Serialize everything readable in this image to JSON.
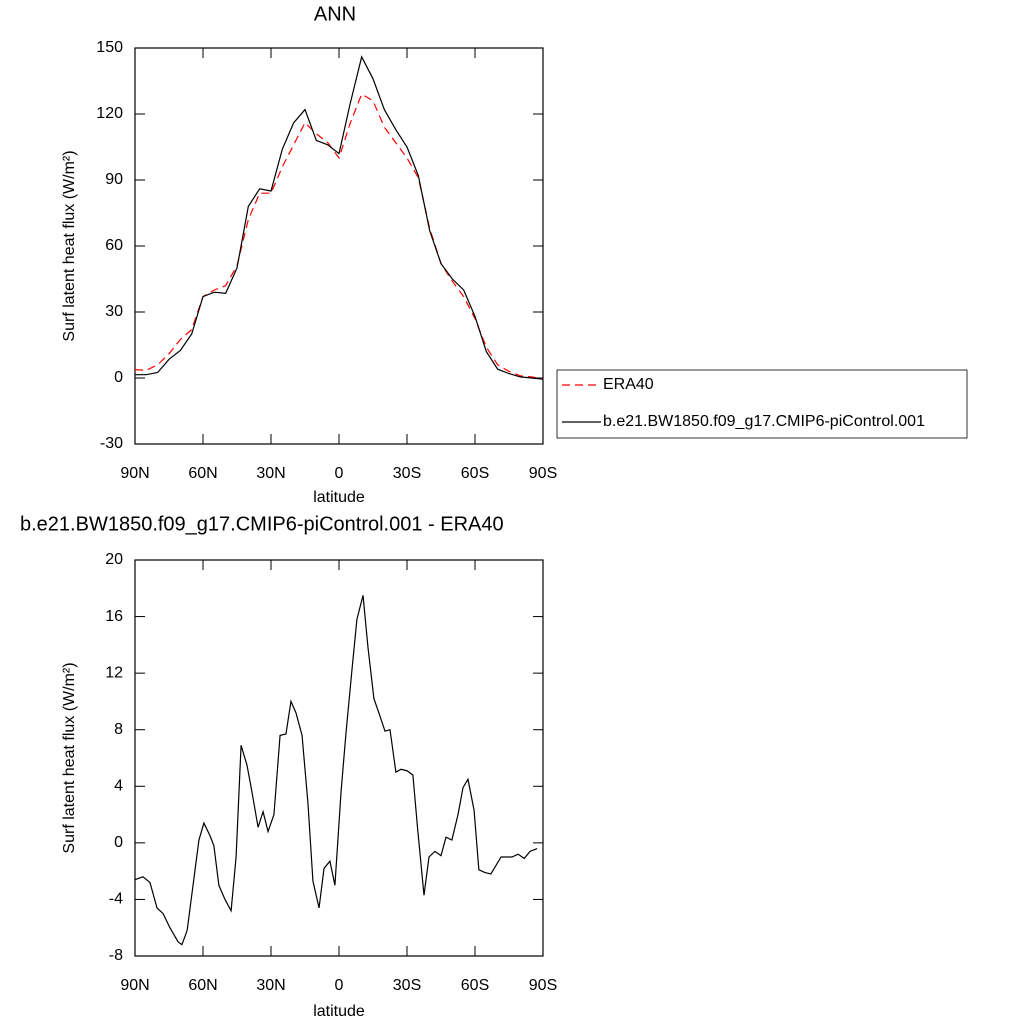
{
  "chart_data": [
    {
      "type": "line",
      "title": "ANN",
      "xlabel": "latitude",
      "ylabel": "Surf latent heat flux (W/m²)",
      "x": [
        90,
        85,
        80,
        75,
        70,
        65,
        60,
        55,
        50,
        45,
        40,
        35,
        30,
        25,
        20,
        15,
        10,
        5,
        0,
        -5,
        -10,
        -15,
        -20,
        -25,
        -30,
        -35,
        -40,
        -45,
        -50,
        -55,
        -60,
        -65,
        -70,
        -75,
        -80,
        -85,
        -90
      ],
      "series": [
        {
          "name": "ERA40",
          "color": "#ff0000",
          "dashed": true,
          "values": [
            3.8,
            3.5,
            6,
            11,
            17.5,
            22,
            37,
            40,
            42,
            51,
            72,
            84,
            84,
            96,
            106,
            116,
            111,
            107,
            100,
            116,
            129,
            126,
            114,
            107,
            100,
            91,
            68,
            52,
            44,
            37,
            27,
            14,
            6,
            3,
            1,
            0.5,
            -0.3
          ]
        },
        {
          "name": "b.e21.BW1850.f09_g17.CMIP6-piControl.001",
          "color": "#000000",
          "dashed": false,
          "values": [
            1.5,
            1.5,
            2.5,
            8.5,
            12.5,
            20,
            37,
            39,
            38.5,
            50,
            78,
            86,
            85,
            104,
            116,
            122,
            108,
            106,
            102,
            125,
            146,
            136,
            122,
            113,
            105,
            92,
            67,
            52,
            45,
            40,
            28,
            12,
            4,
            2,
            0.5,
            0,
            -0.5
          ]
        }
      ],
      "xlim": [
        90,
        -90
      ],
      "ylim": [
        -30,
        150
      ],
      "xticks": [
        {
          "value": 90,
          "label": "90N"
        },
        {
          "value": 60,
          "label": "60N"
        },
        {
          "value": 30,
          "label": "30N"
        },
        0,
        {
          "value": -30,
          "label": "30S"
        },
        {
          "value": -60,
          "label": "60S"
        },
        {
          "value": -90,
          "label": "90S"
        }
      ],
      "yticks": [
        -30,
        0,
        30,
        60,
        90,
        120,
        150
      ],
      "legend": "right"
    },
    {
      "type": "line",
      "title": "b.e21.BW1850.f09_g17.CMIP6-piControl.001 - ERA40",
      "xlabel": "latitude",
      "ylabel": "Surf latent heat flux (W/m²)",
      "x": [
        90,
        86.5,
        83.4,
        80.3,
        77.6,
        74.6,
        71,
        69.3,
        67,
        64.4,
        61.8,
        59.6,
        56.9,
        55.2,
        53,
        50.3,
        47.6,
        45.4,
        43.2,
        40.6,
        38.4,
        35.7,
        33.5,
        31.3,
        28.7,
        26,
        23.4,
        21.2,
        19,
        16.3,
        13.7,
        11.5,
        8.8,
        6.6,
        4,
        1.8,
        -0.9,
        -3.1,
        -5.7,
        -7.9,
        -10.6,
        -12.8,
        -15.4,
        -18,
        -20.3,
        -22.5,
        -25.1,
        -27.3,
        -30,
        -32.6,
        -34.8,
        -37.5,
        -39.7,
        -42.3,
        -45,
        -47.2,
        -49.8,
        -52.5,
        -54.7,
        -56.9,
        -59.6,
        -61.7,
        -64.4,
        -67,
        -71.5,
        -76.3,
        -79,
        -81.7,
        -84.3,
        -87.4
      ],
      "color": "#000000",
      "values": [
        -2.6,
        -2.4,
        -2.8,
        -4.6,
        -5,
        -6,
        -7,
        -7.2,
        -6.2,
        -3,
        0.2,
        1.4,
        0.5,
        -0.2,
        -3,
        -4,
        -4.8,
        -1,
        6.9,
        5.5,
        3.6,
        1.1,
        2.2,
        0.8,
        2,
        7.6,
        7.7,
        10,
        9.2,
        7.6,
        2.8,
        -2.7,
        -4.6,
        -1.8,
        -1.3,
        -3,
        3.6,
        7.8,
        12.2,
        15.8,
        17.5,
        13.8,
        10.2,
        9,
        7.9,
        8,
        5,
        5.2,
        5.1,
        4.8,
        0.8,
        -3.7,
        -1,
        -0.6,
        -0.9,
        0.4,
        0.2,
        2,
        3.9,
        4.5,
        2.3,
        -1.9,
        -2.1,
        -2.2,
        -1,
        -1,
        -0.8,
        -1.1,
        -0.6,
        -0.4
      ],
      "xlim": [
        90,
        -90
      ],
      "ylim": [
        -8,
        20
      ],
      "xticks": [
        {
          "value": 90,
          "label": "90N"
        },
        {
          "value": 60,
          "label": "60N"
        },
        {
          "value": 30,
          "label": "30N"
        },
        0,
        {
          "value": -30,
          "label": "30S"
        },
        {
          "value": -60,
          "label": "60S"
        },
        {
          "value": -90,
          "label": "90S"
        }
      ],
      "yticks": [
        -8,
        -4,
        0,
        4,
        8,
        12,
        16,
        20
      ]
    }
  ]
}
